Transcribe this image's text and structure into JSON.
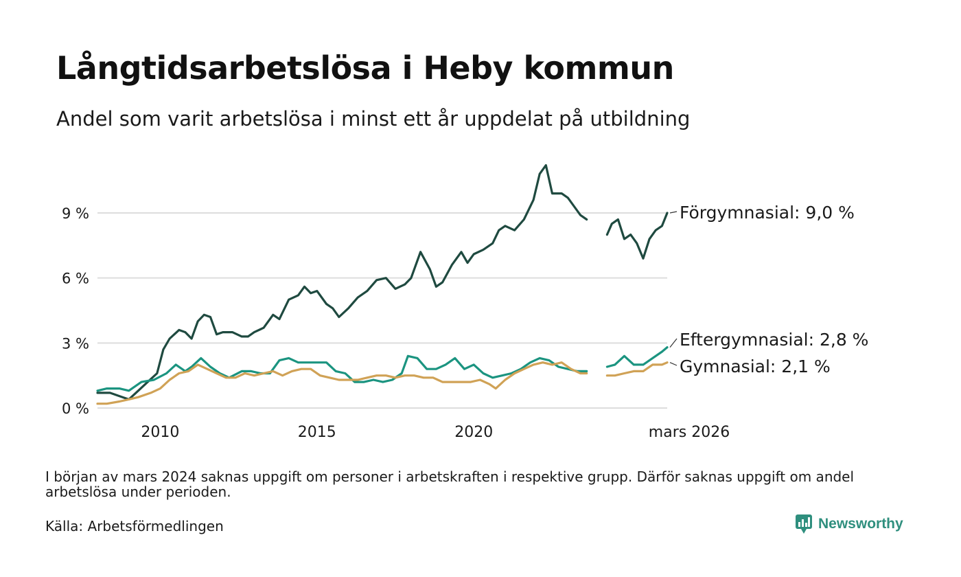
{
  "title": "Långtidsarbetslösa i Heby kommun",
  "subtitle": "Andel som varit arbetslösa i minst ett år uppdelat på utbildning",
  "note": "I början av mars 2024 saknas uppgift om personer i arbetskraften i respektive grupp. Därför saknas uppgift om andel arbetslösa under perioden.",
  "source": "Källa: Arbetsförmedlingen",
  "brand": "Newsworthy",
  "colors": {
    "forgymnasial": "#1f4a40",
    "eftergymnasial": "#1b9480",
    "gymnasial": "#d0a256",
    "grid": "#dddddd",
    "brand": "#2f8f7e"
  },
  "chart_data": {
    "type": "line",
    "title": "Långtidsarbetslösa i Heby kommun",
    "xlabel": "",
    "ylabel": "",
    "x_range": [
      2008.0,
      2026.167
    ],
    "ylim": [
      0,
      11
    ],
    "y_ticks": [
      0,
      3,
      6,
      9
    ],
    "y_tick_labels": [
      "0 %",
      "3 %",
      "6 %",
      "9 %"
    ],
    "x_ticks": [
      2010,
      2015,
      2020,
      2026.167
    ],
    "x_tick_labels": [
      "2010",
      "2015",
      "2020",
      "mars 2026"
    ],
    "gap": [
      2023.6,
      2024.25
    ],
    "series": [
      {
        "name": "Förgymnasial",
        "label": "Förgymnasial: 9,0 %",
        "color_key": "forgymnasial",
        "points": [
          [
            2008.0,
            0.7
          ],
          [
            2008.4,
            0.7
          ],
          [
            2008.8,
            0.5
          ],
          [
            2009.0,
            0.4
          ],
          [
            2009.3,
            0.8
          ],
          [
            2009.6,
            1.2
          ],
          [
            2009.9,
            1.6
          ],
          [
            2010.1,
            2.7
          ],
          [
            2010.3,
            3.2
          ],
          [
            2010.6,
            3.6
          ],
          [
            2010.8,
            3.5
          ],
          [
            2011.0,
            3.2
          ],
          [
            2011.2,
            4.0
          ],
          [
            2011.4,
            4.3
          ],
          [
            2011.6,
            4.2
          ],
          [
            2011.8,
            3.4
          ],
          [
            2012.0,
            3.5
          ],
          [
            2012.3,
            3.5
          ],
          [
            2012.6,
            3.3
          ],
          [
            2012.8,
            3.3
          ],
          [
            2013.0,
            3.5
          ],
          [
            2013.3,
            3.7
          ],
          [
            2013.6,
            4.3
          ],
          [
            2013.8,
            4.1
          ],
          [
            2014.1,
            5.0
          ],
          [
            2014.4,
            5.2
          ],
          [
            2014.6,
            5.6
          ],
          [
            2014.8,
            5.3
          ],
          [
            2015.0,
            5.4
          ],
          [
            2015.3,
            4.8
          ],
          [
            2015.5,
            4.6
          ],
          [
            2015.7,
            4.2
          ],
          [
            2016.0,
            4.6
          ],
          [
            2016.3,
            5.1
          ],
          [
            2016.6,
            5.4
          ],
          [
            2016.9,
            5.9
          ],
          [
            2017.2,
            6.0
          ],
          [
            2017.5,
            5.5
          ],
          [
            2017.8,
            5.7
          ],
          [
            2018.0,
            6.0
          ],
          [
            2018.3,
            7.2
          ],
          [
            2018.6,
            6.4
          ],
          [
            2018.8,
            5.6
          ],
          [
            2019.0,
            5.8
          ],
          [
            2019.3,
            6.6
          ],
          [
            2019.6,
            7.2
          ],
          [
            2019.8,
            6.7
          ],
          [
            2020.0,
            7.1
          ],
          [
            2020.3,
            7.3
          ],
          [
            2020.6,
            7.6
          ],
          [
            2020.8,
            8.2
          ],
          [
            2021.0,
            8.4
          ],
          [
            2021.3,
            8.2
          ],
          [
            2021.6,
            8.7
          ],
          [
            2021.9,
            9.6
          ],
          [
            2022.1,
            10.8
          ],
          [
            2022.3,
            11.2
          ],
          [
            2022.5,
            9.9
          ],
          [
            2022.8,
            9.9
          ],
          [
            2023.0,
            9.7
          ],
          [
            2023.2,
            9.3
          ],
          [
            2023.4,
            8.9
          ],
          [
            2023.6,
            8.7
          ],
          [
            2024.25,
            8.0
          ],
          [
            2024.4,
            8.5
          ],
          [
            2024.6,
            8.7
          ],
          [
            2024.8,
            7.8
          ],
          [
            2025.0,
            8.0
          ],
          [
            2025.2,
            7.6
          ],
          [
            2025.4,
            6.9
          ],
          [
            2025.6,
            7.8
          ],
          [
            2025.8,
            8.2
          ],
          [
            2026.0,
            8.4
          ],
          [
            2026.167,
            9.0
          ]
        ]
      },
      {
        "name": "Eftergymnasial",
        "label": "Eftergymnasial: 2,8 %",
        "color_key": "eftergymnasial",
        "points": [
          [
            2008.0,
            0.8
          ],
          [
            2008.3,
            0.9
          ],
          [
            2008.7,
            0.9
          ],
          [
            2009.0,
            0.8
          ],
          [
            2009.4,
            1.2
          ],
          [
            2009.8,
            1.3
          ],
          [
            2010.2,
            1.6
          ],
          [
            2010.5,
            2.0
          ],
          [
            2010.8,
            1.7
          ],
          [
            2011.0,
            1.9
          ],
          [
            2011.3,
            2.3
          ],
          [
            2011.6,
            1.9
          ],
          [
            2011.9,
            1.6
          ],
          [
            2012.2,
            1.4
          ],
          [
            2012.6,
            1.7
          ],
          [
            2012.9,
            1.7
          ],
          [
            2013.2,
            1.6
          ],
          [
            2013.5,
            1.6
          ],
          [
            2013.8,
            2.2
          ],
          [
            2014.1,
            2.3
          ],
          [
            2014.4,
            2.1
          ],
          [
            2014.7,
            2.1
          ],
          [
            2015.0,
            2.1
          ],
          [
            2015.3,
            2.1
          ],
          [
            2015.6,
            1.7
          ],
          [
            2015.9,
            1.6
          ],
          [
            2016.2,
            1.2
          ],
          [
            2016.5,
            1.2
          ],
          [
            2016.8,
            1.3
          ],
          [
            2017.1,
            1.2
          ],
          [
            2017.4,
            1.3
          ],
          [
            2017.7,
            1.6
          ],
          [
            2017.9,
            2.4
          ],
          [
            2018.2,
            2.3
          ],
          [
            2018.5,
            1.8
          ],
          [
            2018.8,
            1.8
          ],
          [
            2019.1,
            2.0
          ],
          [
            2019.4,
            2.3
          ],
          [
            2019.7,
            1.8
          ],
          [
            2020.0,
            2.0
          ],
          [
            2020.3,
            1.6
          ],
          [
            2020.6,
            1.4
          ],
          [
            2020.9,
            1.5
          ],
          [
            2021.2,
            1.6
          ],
          [
            2021.5,
            1.8
          ],
          [
            2021.8,
            2.1
          ],
          [
            2022.1,
            2.3
          ],
          [
            2022.4,
            2.2
          ],
          [
            2022.7,
            1.9
          ],
          [
            2023.0,
            1.8
          ],
          [
            2023.3,
            1.7
          ],
          [
            2023.6,
            1.7
          ],
          [
            2024.25,
            1.9
          ],
          [
            2024.5,
            2.0
          ],
          [
            2024.8,
            2.4
          ],
          [
            2025.1,
            2.0
          ],
          [
            2025.4,
            2.0
          ],
          [
            2025.7,
            2.3
          ],
          [
            2026.0,
            2.6
          ],
          [
            2026.167,
            2.8
          ]
        ]
      },
      {
        "name": "Gymnasial",
        "label": "Gymnasial: 2,1 %",
        "color_key": "gymnasial",
        "points": [
          [
            2008.0,
            0.2
          ],
          [
            2008.3,
            0.2
          ],
          [
            2008.7,
            0.3
          ],
          [
            2009.0,
            0.4
          ],
          [
            2009.3,
            0.5
          ],
          [
            2009.7,
            0.7
          ],
          [
            2010.0,
            0.9
          ],
          [
            2010.3,
            1.3
          ],
          [
            2010.6,
            1.6
          ],
          [
            2010.9,
            1.7
          ],
          [
            2011.2,
            2.0
          ],
          [
            2011.5,
            1.8
          ],
          [
            2011.8,
            1.6
          ],
          [
            2012.1,
            1.4
          ],
          [
            2012.4,
            1.4
          ],
          [
            2012.7,
            1.6
          ],
          [
            2013.0,
            1.5
          ],
          [
            2013.3,
            1.6
          ],
          [
            2013.6,
            1.7
          ],
          [
            2013.9,
            1.5
          ],
          [
            2014.2,
            1.7
          ],
          [
            2014.5,
            1.8
          ],
          [
            2014.8,
            1.8
          ],
          [
            2015.1,
            1.5
          ],
          [
            2015.4,
            1.4
          ],
          [
            2015.7,
            1.3
          ],
          [
            2016.0,
            1.3
          ],
          [
            2016.3,
            1.3
          ],
          [
            2016.6,
            1.4
          ],
          [
            2016.9,
            1.5
          ],
          [
            2017.2,
            1.5
          ],
          [
            2017.5,
            1.4
          ],
          [
            2017.8,
            1.5
          ],
          [
            2018.1,
            1.5
          ],
          [
            2018.4,
            1.4
          ],
          [
            2018.7,
            1.4
          ],
          [
            2019.0,
            1.2
          ],
          [
            2019.3,
            1.2
          ],
          [
            2019.6,
            1.2
          ],
          [
            2019.9,
            1.2
          ],
          [
            2020.2,
            1.3
          ],
          [
            2020.5,
            1.1
          ],
          [
            2020.7,
            0.9
          ],
          [
            2021.0,
            1.3
          ],
          [
            2021.3,
            1.6
          ],
          [
            2021.6,
            1.8
          ],
          [
            2021.9,
            2.0
          ],
          [
            2022.2,
            2.1
          ],
          [
            2022.5,
            2.0
          ],
          [
            2022.8,
            2.1
          ],
          [
            2023.1,
            1.8
          ],
          [
            2023.4,
            1.6
          ],
          [
            2023.6,
            1.6
          ],
          [
            2024.25,
            1.5
          ],
          [
            2024.5,
            1.5
          ],
          [
            2024.8,
            1.6
          ],
          [
            2025.1,
            1.7
          ],
          [
            2025.4,
            1.7
          ],
          [
            2025.7,
            2.0
          ],
          [
            2026.0,
            2.0
          ],
          [
            2026.167,
            2.1
          ]
        ]
      }
    ]
  }
}
